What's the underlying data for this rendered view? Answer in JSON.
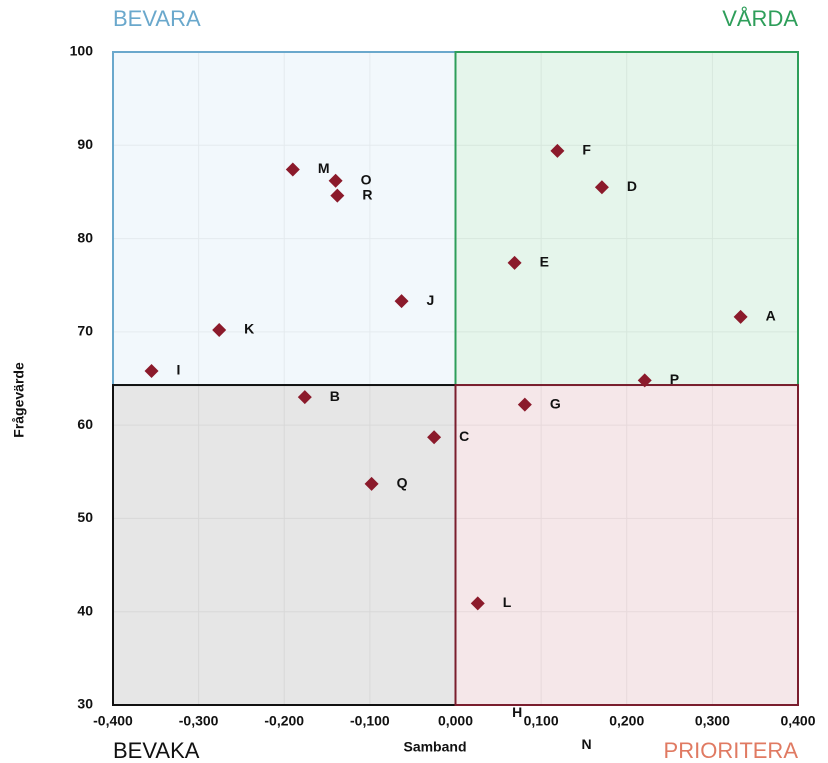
{
  "chart_data": {
    "type": "scatter",
    "x_label": "Samband",
    "y_label": "Frågevärde",
    "xlim": [
      -0.4,
      0.4
    ],
    "xticks": [
      {
        "value": -0.4,
        "label": "-0,400"
      },
      {
        "value": -0.3,
        "label": "-0,300"
      },
      {
        "value": -0.2,
        "label": "-0,200"
      },
      {
        "value": -0.1,
        "label": "-0,100"
      },
      {
        "value": 0,
        "label": "0,000"
      },
      {
        "value": 0.1,
        "label": "0,100"
      },
      {
        "value": 0.2,
        "label": "0,200"
      },
      {
        "value": 0.3,
        "label": "0,300"
      },
      {
        "value": 0.4,
        "label": "0,400"
      }
    ],
    "ylim": [
      30,
      100
    ],
    "yticks": [
      30,
      40,
      50,
      60,
      70,
      80,
      90,
      100
    ],
    "grid": true,
    "quadrant_split": {
      "x": 0,
      "y": 64.3
    },
    "quadrants": [
      {
        "label": "BEVARA",
        "position": "top-left",
        "color": "#6aa8cc",
        "fill": "#eef6fb"
      },
      {
        "label": "VÅRDA",
        "position": "top-right",
        "color": "#2e9e5a",
        "fill": "#dcf1e4"
      },
      {
        "label": "BEVAKA",
        "position": "bottom-left",
        "color": "#111111",
        "fill": "#dedede"
      },
      {
        "label": "PRIORITERA",
        "position": "bottom-right",
        "color": "#e07a62",
        "fill": "#f1dfe2",
        "border": "#7a1e2e"
      }
    ],
    "series": [
      {
        "color": "#8b1a2b",
        "labels": [
          "F",
          "D",
          "E",
          "A",
          "P",
          "G",
          "C",
          "L",
          "Q",
          "B",
          "I",
          "K",
          "J",
          "M",
          "O",
          "R",
          "H",
          "N"
        ],
        "x": [
          0.119,
          0.171,
          0.069,
          0.333,
          0.221,
          0.081,
          -0.025,
          0.026,
          -0.098,
          -0.176,
          -0.355,
          -0.276,
          -0.063,
          -0.19,
          -0.14,
          -0.138,
          0.037,
          0.118
        ],
        "values": [
          89.4,
          85.5,
          77.4,
          71.6,
          64.8,
          62.2,
          58.7,
          40.9,
          53.7,
          63.0,
          65.8,
          70.2,
          73.3,
          87.4,
          86.2,
          84.6,
          29.1,
          25.7
        ]
      }
    ]
  }
}
